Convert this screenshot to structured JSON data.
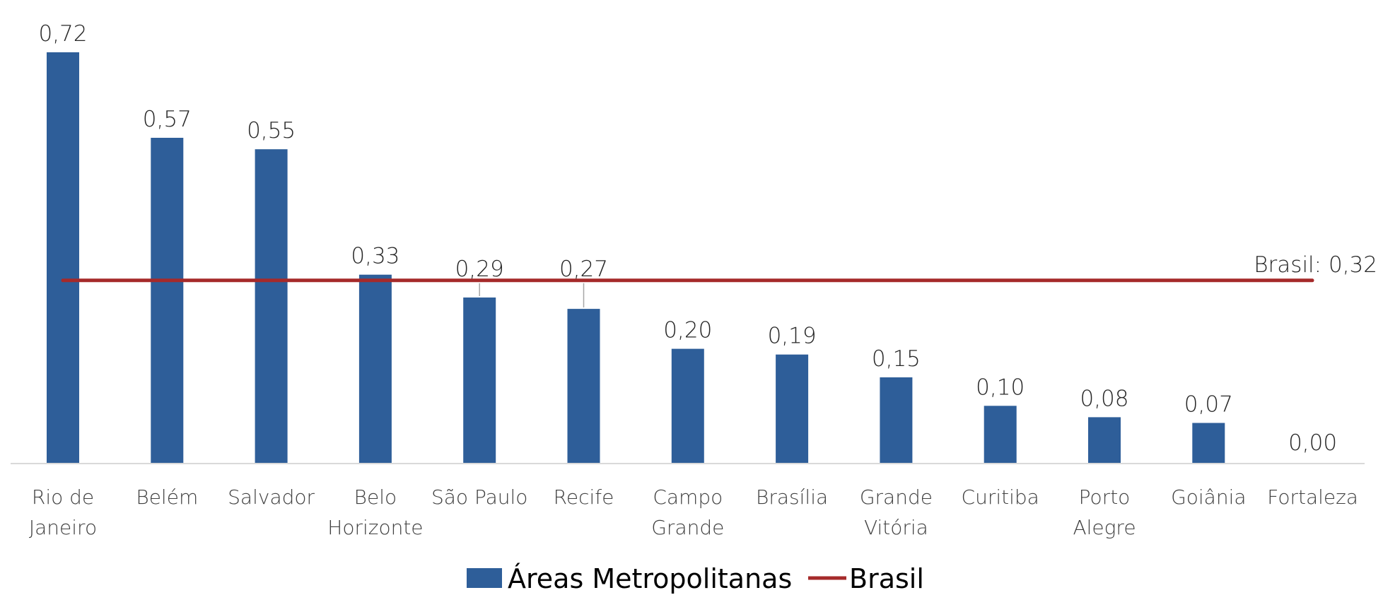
{
  "chart_data": {
    "type": "bar",
    "categories": [
      [
        "Rio de",
        "Janeiro"
      ],
      [
        "Belém"
      ],
      [
        "Salvador"
      ],
      [
        "Belo",
        "Horizonte"
      ],
      [
        "São Paulo"
      ],
      [
        "Recife"
      ],
      [
        "Campo",
        "Grande"
      ],
      [
        "Brasília"
      ],
      [
        "Grande",
        "Vitória"
      ],
      [
        "Curitiba"
      ],
      [
        "Porto",
        "Alegre"
      ],
      [
        "Goiânia"
      ],
      [
        "Fortaleza"
      ]
    ],
    "series": [
      {
        "name": "Áreas Metropolitanas",
        "type": "bar",
        "color": "#2E5E99",
        "values": [
          0.72,
          0.57,
          0.55,
          0.33,
          0.29,
          0.27,
          0.2,
          0.19,
          0.15,
          0.1,
          0.08,
          0.07,
          0.0
        ],
        "labels": [
          "0,72",
          "0,57",
          "0,55",
          "0,33",
          "0,29",
          "0,27",
          "0,20",
          "0,19",
          "0,15",
          "0,10",
          "0,08",
          "0,07",
          "0,00"
        ]
      },
      {
        "name": "Brasil",
        "type": "line",
        "color": "#A52A2A",
        "value": 0.32,
        "label": "Brasil: 0,32"
      }
    ],
    "ylim": [
      0,
      0.76
    ],
    "grid": false,
    "legend": "bottom-center",
    "title": "",
    "xlabel": "",
    "ylabel": ""
  }
}
